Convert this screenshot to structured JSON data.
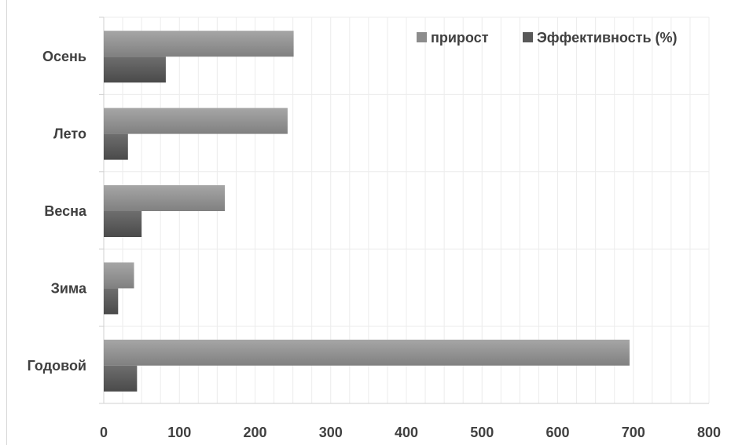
{
  "chart_data": {
    "type": "bar",
    "orientation": "horizontal",
    "categories": [
      "Годовой",
      "Зима",
      "Весна",
      "Лето",
      "Осень"
    ],
    "series": [
      {
        "name": "прирост",
        "values": [
          695,
          40,
          160,
          243,
          251
        ],
        "color": "#8c8c8c"
      },
      {
        "name": "Эффективность  (%)",
        "values": [
          44,
          19,
          50,
          32,
          82
        ],
        "color": "#595959"
      }
    ],
    "xlim": [
      0,
      800
    ],
    "x_ticks": [
      0,
      100,
      200,
      300,
      400,
      500,
      600,
      700,
      800
    ],
    "grid": true,
    "legend_position": "top-right"
  }
}
